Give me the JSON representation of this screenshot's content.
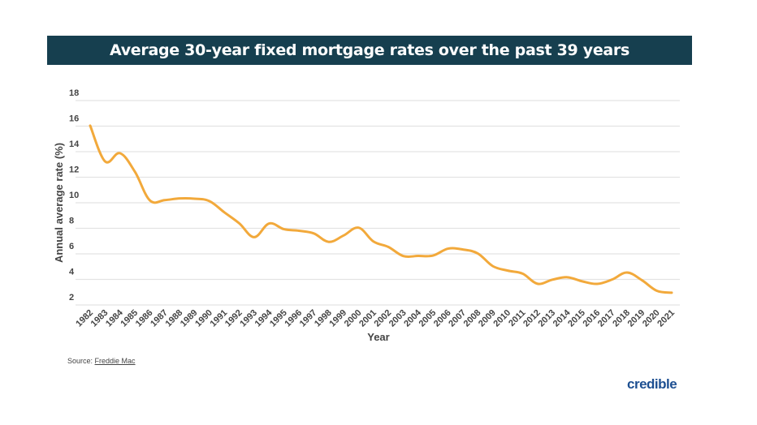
{
  "chart_data": {
    "type": "line",
    "title": "Average 30-year fixed mortgage rates over the past 39 years",
    "xlabel": "Year",
    "ylabel": "Annual average rate (%)",
    "ylim": [
      2,
      18
    ],
    "yticks": [
      2,
      4,
      6,
      8,
      10,
      12,
      14,
      16,
      18
    ],
    "grid": true,
    "line_color": "#f2a93b",
    "x": [
      "1982",
      "1983",
      "1984",
      "1985",
      "1986",
      "1987",
      "1988",
      "1989",
      "1990",
      "1991",
      "1992",
      "1993",
      "1994",
      "1995",
      "1996",
      "1997",
      "1998",
      "1999",
      "2000",
      "2001",
      "2002",
      "2003",
      "2004",
      "2005",
      "2006",
      "2007",
      "2008",
      "2009",
      "2010",
      "2011",
      "2012",
      "2013",
      "2014",
      "2015",
      "2016",
      "2017",
      "2018",
      "2019",
      "2020",
      "2021"
    ],
    "values": [
      16.04,
      13.24,
      13.88,
      12.43,
      10.19,
      10.21,
      10.34,
      10.32,
      10.13,
      9.25,
      8.39,
      7.31,
      8.38,
      7.93,
      7.81,
      7.6,
      6.94,
      7.44,
      8.05,
      6.97,
      6.54,
      5.83,
      5.84,
      5.87,
      6.41,
      6.34,
      6.03,
      5.04,
      4.69,
      4.45,
      3.66,
      3.98,
      4.17,
      3.85,
      3.65,
      3.99,
      4.54,
      3.94,
      3.11,
      2.96
    ]
  },
  "source": {
    "prefix": "Source: ",
    "link": "Freddie Mac"
  },
  "logo": "credible",
  "title_bar_color": "#163f4f"
}
